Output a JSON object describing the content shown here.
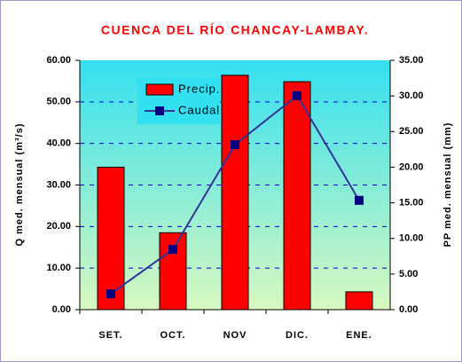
{
  "chart_data": {
    "type": "bar_line",
    "title": "CUENCA DEL RÍO CHANCAY-LAMBAY.",
    "y_label": "Q med. mensual (m³/s)",
    "y2_label": "PP med. mensual (mm)",
    "categories": [
      "SET.",
      "OCT.",
      "NOV",
      "DIC.",
      "ENE."
    ],
    "series": [
      {
        "name": "Precip.",
        "type": "bar",
        "axis": "y2",
        "color": "#ff0000",
        "values": [
          20.0,
          10.8,
          32.9,
          32.0,
          2.5
        ]
      },
      {
        "name": "Caudal",
        "type": "line",
        "color": "#333399",
        "values": [
          3.8,
          14.5,
          39.7,
          51.5,
          26.3
        ]
      }
    ],
    "ylim": [
      0,
      60
    ],
    "yticks": [
      {
        "value": 0,
        "label": "0.00"
      },
      {
        "value": 10,
        "label": "10.00"
      },
      {
        "value": 20,
        "label": "20.00"
      },
      {
        "value": 30,
        "label": "30.00"
      },
      {
        "value": 40,
        "label": "40.00"
      },
      {
        "value": 50,
        "label": "50.00"
      },
      {
        "value": 60,
        "label": "60.00"
      }
    ],
    "y2lim": [
      0,
      35
    ],
    "y2ticks": [
      {
        "value": 0,
        "label": "0.00"
      },
      {
        "value": 5,
        "label": "5.00"
      },
      {
        "value": 10,
        "label": "10.00"
      },
      {
        "value": 15,
        "label": "15.00"
      },
      {
        "value": 20,
        "label": "20.00"
      },
      {
        "value": 25,
        "label": "25.00"
      },
      {
        "value": 30,
        "label": "30.00"
      },
      {
        "value": 35,
        "label": "35.00"
      }
    ],
    "grid": true,
    "legend": "upper left"
  }
}
